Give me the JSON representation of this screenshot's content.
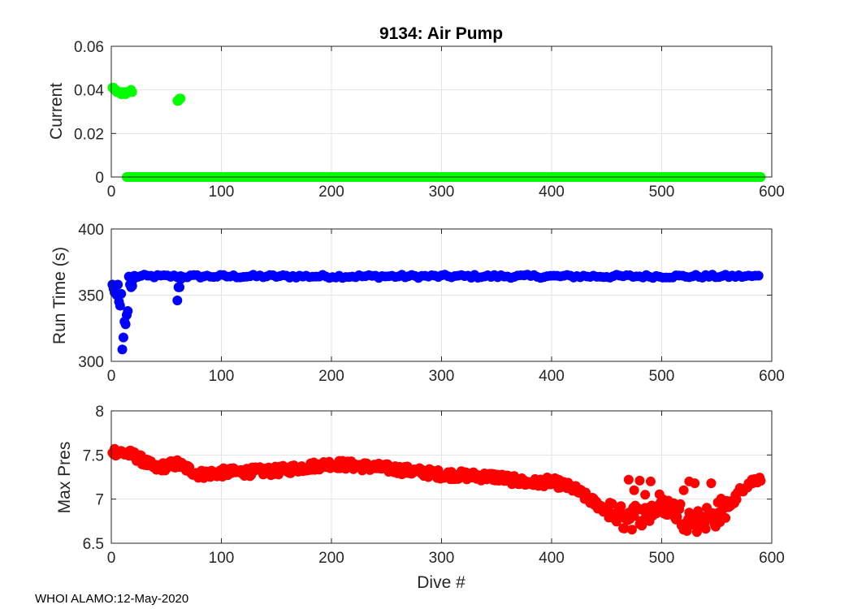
{
  "chart_data": [
    {
      "type": "scatter",
      "title": "9134: Air Pump",
      "xlabel": "",
      "ylabel": "Current",
      "xlim": [
        0,
        600
      ],
      "ylim": [
        0,
        0.06
      ],
      "xticks": [
        "0",
        "100",
        "200",
        "300",
        "400",
        "500",
        "600"
      ],
      "yticks": [
        "0",
        "0.02",
        "0.04",
        "0.06"
      ],
      "grid": true,
      "color": "#00ff00",
      "series": [
        {
          "x": [
            1,
            2,
            3,
            4,
            5,
            6,
            7,
            8,
            9,
            10,
            11,
            12,
            13,
            14,
            15,
            16,
            17,
            18,
            19,
            60,
            61,
            62,
            63
          ],
          "y": [
            0.041,
            0.041,
            0.04,
            0.04,
            0.039,
            0.039,
            0.039,
            0.039,
            0.038,
            0.039,
            0.039,
            0.039,
            0.038,
            0.039,
            0.039,
            0.039,
            0.039,
            0.04,
            0.039,
            0.035,
            0.035,
            0.036,
            0.036
          ]
        },
        {
          "x_range": [
            14,
            590
          ],
          "x_step": 1,
          "y": 0
        }
      ]
    },
    {
      "type": "scatter",
      "title": "",
      "xlabel": "",
      "ylabel": "Run Time (s)",
      "xlim": [
        0,
        600
      ],
      "ylim": [
        300,
        400
      ],
      "xticks": [
        "0",
        "100",
        "200",
        "300",
        "400",
        "500",
        "600"
      ],
      "yticks": [
        "300",
        "350",
        "400"
      ],
      "grid": true,
      "color": "#0000ff",
      "series": [
        {
          "x": [
            1,
            2,
            3,
            4,
            5,
            6,
            7,
            8,
            9,
            10,
            11,
            12,
            13,
            14,
            15,
            16,
            17,
            18,
            19,
            20,
            60,
            61,
            62,
            63
          ],
          "y": [
            358,
            355,
            352,
            357,
            350,
            358,
            345,
            342,
            351,
            309,
            318,
            330,
            328,
            335,
            338,
            364,
            358,
            356,
            357,
            362,
            346,
            356,
            356,
            362
          ]
        },
        {
          "x_range": [
            21,
            590
          ],
          "x_step": 3,
          "y_base": 364,
          "y_jitter": [
            -1,
            1.5
          ]
        }
      ]
    },
    {
      "type": "scatter",
      "title": "",
      "xlabel": "Dive #",
      "ylabel": "Max Pres",
      "xlim": [
        0,
        600
      ],
      "ylim": [
        6.5,
        8
      ],
      "xticks": [
        "0",
        "100",
        "200",
        "300",
        "400",
        "500",
        "600"
      ],
      "yticks": [
        "6.5",
        "7",
        "7.5",
        "8"
      ],
      "grid": true,
      "color": "#ff0000",
      "trend": {
        "x": [
          0,
          20,
          40,
          60,
          80,
          100,
          150,
          200,
          250,
          300,
          350,
          380,
          400,
          420,
          440,
          460,
          480,
          500,
          520,
          540,
          560,
          575,
          590
        ],
        "y": [
          7.55,
          7.5,
          7.35,
          7.4,
          7.28,
          7.3,
          7.32,
          7.4,
          7.35,
          7.28,
          7.25,
          7.18,
          7.2,
          7.12,
          6.95,
          6.8,
          6.8,
          6.95,
          6.8,
          6.78,
          6.9,
          7.15,
          7.25
        ]
      },
      "jitter": 0.05,
      "x_step": 1,
      "outliers": {
        "x": [
          470,
          475,
          480,
          485,
          490,
          520,
          525,
          530,
          545,
          548
        ],
        "y": [
          7.22,
          7.1,
          7.21,
          7.05,
          7.2,
          7.1,
          7.2,
          7.18,
          7.18,
          6.72
        ]
      }
    }
  ],
  "footer": "WHOI ALAMO:12-May-2020"
}
